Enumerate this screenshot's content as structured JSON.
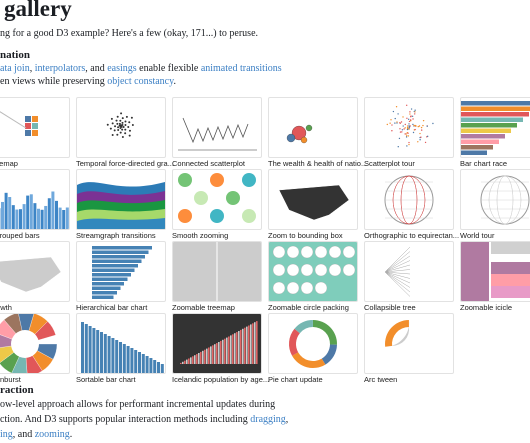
{
  "header": {
    "title": "gallery",
    "intro": "ng for a good D3 example? Here's a few (okay, 171...) to peruse."
  },
  "sections": [
    {
      "heading": "nation",
      "lines": [
        [
          {
            "text": "ata join",
            "link": true
          },
          {
            "text": ", "
          },
          {
            "text": "interpolators",
            "link": true
          },
          {
            "text": ", and "
          },
          {
            "text": "easings",
            "link": true
          },
          {
            "text": " enable flexible "
          },
          {
            "text": "animated transitions",
            "link": true
          }
        ],
        [
          {
            "text": "en views while preserving "
          },
          {
            "text": "object constancy",
            "link": true
          },
          {
            "text": "."
          }
        ]
      ],
      "tiles": [
        "ed treemap",
        "Temporal force-directed gra...",
        "Connected scatterplot",
        "The wealth & health of natio...",
        "Scatterplot tour",
        "Bar chart race",
        "d-to-grouped bars",
        "Streamgraph transitions",
        "Smooth zooming",
        "Zoom to bounding box",
        "Orthographic to equirectan...",
        "World tour",
        "t's growth",
        "Hierarchical bar chart",
        "Zoomable treemap",
        "Zoomable circle packing",
        "Collapsible tree",
        "Zoomable icicle",
        "ble sunburst",
        "Sortable bar chart",
        "Icelandic population by age...",
        "Pie chart update",
        "Arc tween"
      ]
    },
    {
      "heading": "raction",
      "lines": [
        [
          {
            "text": "ow-level approach allows for performant incremental updates during"
          }
        ],
        [
          {
            "text": "ction. And D3 supports popular interaction methods including "
          },
          {
            "text": "dragging",
            "link": true
          },
          {
            "text": ","
          }
        ],
        [
          {
            "text": "ing",
            "link": true
          },
          {
            "text": ", and "
          },
          {
            "text": "zooming",
            "link": true
          },
          {
            "text": "."
          }
        ]
      ]
    }
  ]
}
